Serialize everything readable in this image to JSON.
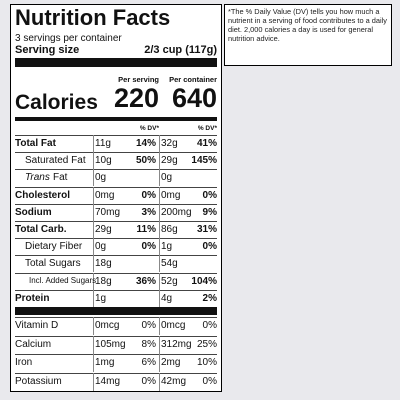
{
  "label": {
    "title": "Nutrition Facts",
    "servings": "3 servings per container",
    "serving_size": {
      "label": "Serving size",
      "value": "2/3 cup (117g)"
    },
    "columns": [
      "Per serving",
      "Per container"
    ],
    "calories": {
      "label": "Calories",
      "values": [
        "220",
        "640"
      ]
    },
    "dv_headers": [
      "% DV*",
      "% DV*"
    ],
    "nutrients": [
      {
        "name": "Total Fat",
        "amounts": [
          "11g",
          "32g"
        ],
        "dv": [
          "14%",
          "41%"
        ]
      },
      {
        "name": "Saturated Fat",
        "amounts": [
          "10g",
          "29g"
        ],
        "dv": [
          "50%",
          "145%"
        ]
      },
      {
        "name_italic": "Trans",
        "name": "Fat",
        "amounts": [
          "0g",
          "0g"
        ]
      },
      {
        "name": "Cholesterol",
        "amounts": [
          "0mg",
          "0mg"
        ],
        "dv": [
          "0%",
          "0%"
        ]
      },
      {
        "name": "Sodium",
        "amounts": [
          "70mg",
          "200mg"
        ],
        "dv": [
          "3%",
          "9%"
        ]
      },
      {
        "name": "Total Carb.",
        "amounts": [
          "29g",
          "86g"
        ],
        "dv": [
          "11%",
          "31%"
        ]
      },
      {
        "name": "Dietary Fiber",
        "amounts": [
          "0g",
          "1g"
        ],
        "dv": [
          "0%",
          "0%"
        ]
      },
      {
        "name": "Total Sugars",
        "amounts": [
          "18g",
          "54g"
        ]
      },
      {
        "name": "Incl. Added Sugars",
        "amounts": [
          "18g",
          "52g"
        ],
        "dv": [
          "36%",
          "104%"
        ]
      },
      {
        "name": "Protein",
        "amounts": [
          "1g",
          "4g"
        ],
        "dv2": "2%"
      }
    ],
    "vitamins": [
      {
        "name": "Vitamin D",
        "amounts": [
          "0mcg",
          "0mcg"
        ],
        "dv": [
          "0%",
          "0%"
        ]
      },
      {
        "name": "Calcium",
        "amounts": [
          "105mg",
          "312mg"
        ],
        "dv": [
          "8%",
          "25%"
        ]
      },
      {
        "name": "Iron",
        "amounts": [
          "1mg",
          "2mg"
        ],
        "dv": [
          "6%",
          "10%"
        ]
      },
      {
        "name": "Potassium",
        "amounts": [
          "14mg",
          "42mg"
        ],
        "dv": [
          "0%",
          "0%"
        ]
      }
    ]
  },
  "footnote": "*The % Daily Value (DV) tells you how much a nutrient in a serving of food contributes to a daily diet. 2,000 calories a day is used for general nutrition advice."
}
